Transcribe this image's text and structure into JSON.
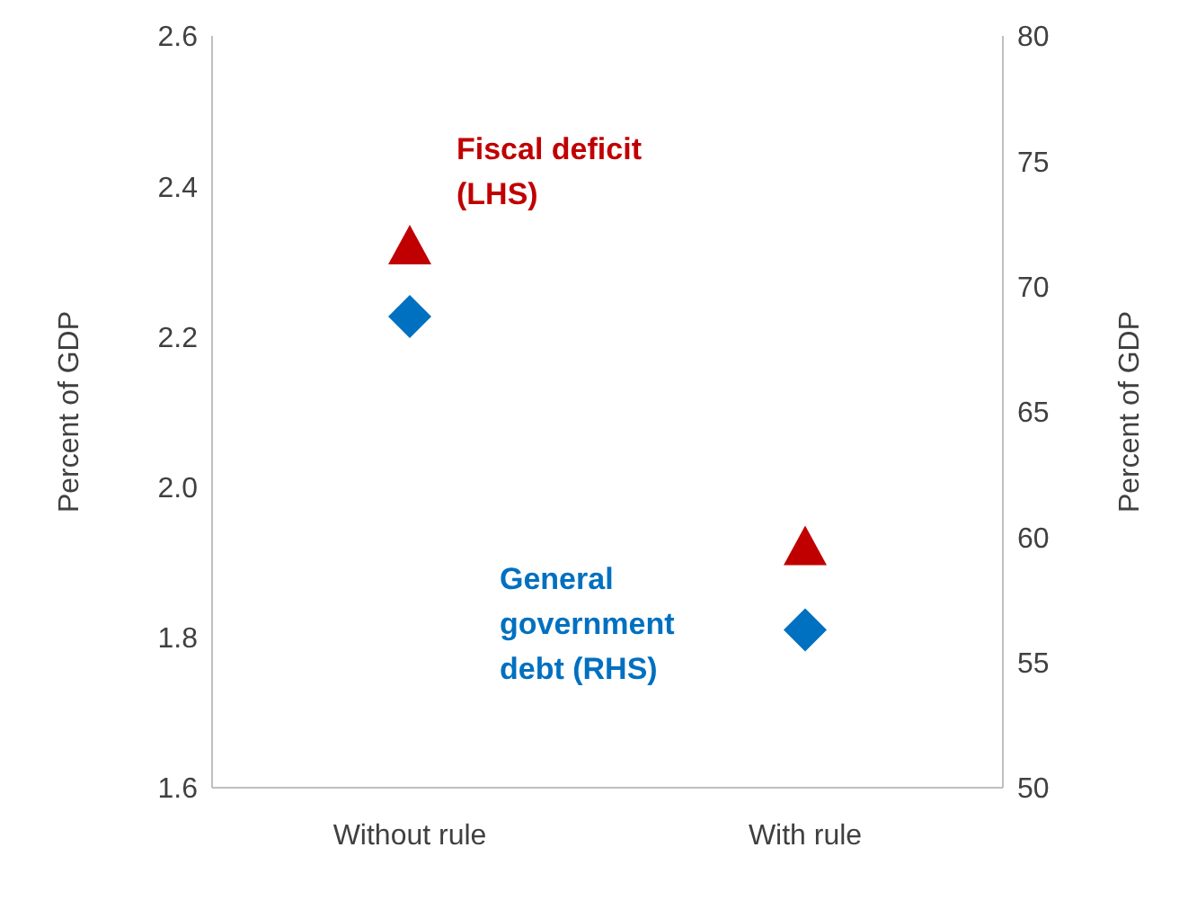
{
  "chart_data": {
    "type": "scatter",
    "categories": [
      "Without rule",
      "With rule"
    ],
    "ylabel": "Percent of GDP",
    "y2label": "Percent of GDP",
    "ylim": [
      1.6,
      2.6
    ],
    "yticks": [
      1.6,
      1.8,
      {
        "value": 2,
        "label": "2.0"
      },
      2.2,
      2.4,
      2.6
    ],
    "y2lim": [
      50,
      80
    ],
    "y2ticks": [
      50,
      55,
      60,
      65,
      70,
      75,
      80
    ],
    "grid": false,
    "legend": false,
    "series": [
      {
        "name": "Fiscal deficit (LHS)",
        "color": "#c00000",
        "marker": "triangle",
        "values": [
          2.32,
          1.92
        ]
      },
      {
        "name": "General government debt (RHS)",
        "color": "#0070c0",
        "marker": "diamond",
        "axis": "y2",
        "values": [
          68.8,
          56.3
        ]
      }
    ]
  }
}
